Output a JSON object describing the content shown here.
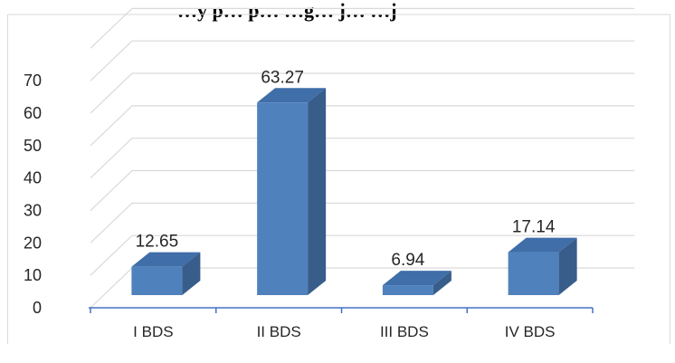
{
  "chart_data": {
    "type": "bar",
    "title": "…y p… p… …g… j… …j",
    "categories": [
      "I BDS",
      "II BDS",
      "III BDS",
      "IV BDS"
    ],
    "values": [
      12.65,
      63.27,
      6.94,
      17.14
    ],
    "data_labels": [
      "12.65",
      "63.27",
      "6.94",
      "17.14"
    ],
    "y_ticks": [
      "0",
      "10",
      "20",
      "30",
      "40",
      "50",
      "60",
      "70"
    ],
    "ylim": [
      0,
      80
    ],
    "grid": true,
    "three_d": true,
    "legend": "none",
    "xlabel": "",
    "ylabel": "",
    "colors": {
      "bar_front": "#4f81bd",
      "bar_side": "#385d8a",
      "bar_top": "#3f6ea8",
      "grid": "#d9d9d9",
      "axis": "#4472c4",
      "text": "#262626",
      "border": "#d9d9d9"
    }
  }
}
